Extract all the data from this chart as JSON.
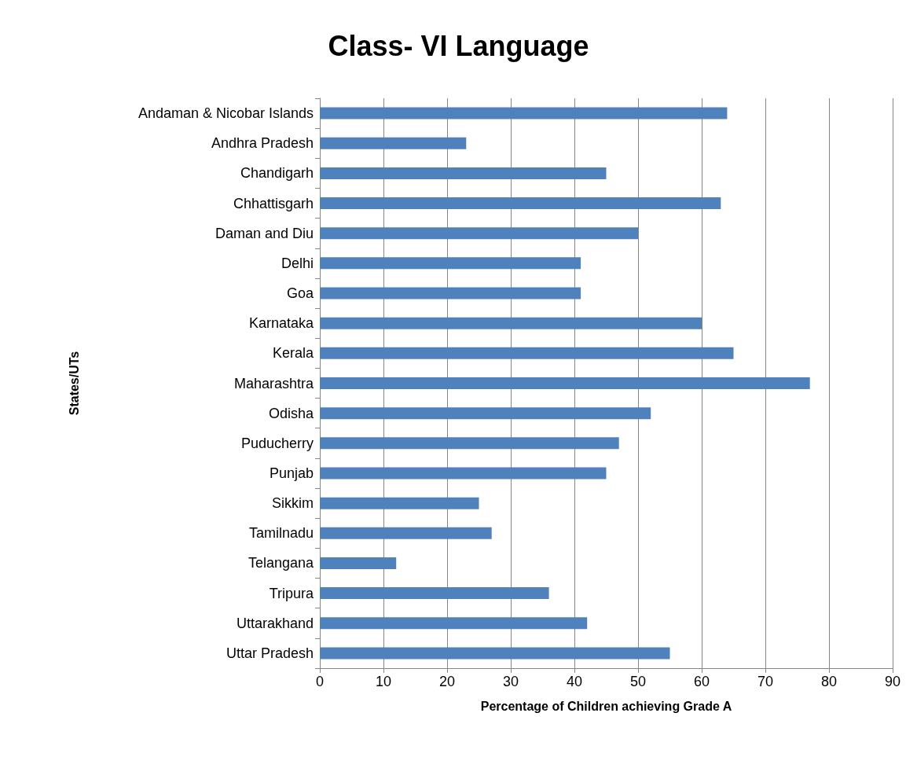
{
  "chart_data": {
    "type": "bar",
    "orientation": "horizontal",
    "title": "Class- VI Language",
    "xlabel": "Percentage of Children achieving Grade A",
    "ylabel": "States/UTs",
    "categories": [
      "Andaman & Nicobar Islands",
      "Andhra Pradesh",
      "Chandigarh",
      "Chhattisgarh",
      "Daman and Diu",
      "Delhi",
      "Goa",
      "Karnataka",
      "Kerala",
      "Maharashtra",
      "Odisha",
      "Puducherry",
      "Punjab",
      "Sikkim",
      "Tamilnadu",
      "Telangana",
      "Tripura",
      "Uttarakhand",
      "Uttar Pradesh"
    ],
    "values": [
      64,
      23,
      45,
      63,
      50,
      41,
      41,
      60,
      65,
      77,
      52,
      47,
      45,
      25,
      27,
      12,
      36,
      42,
      55
    ],
    "color": "#4f81bd",
    "xlim": [
      0,
      90
    ],
    "xticks": [
      0,
      10,
      20,
      30,
      40,
      50,
      60,
      70,
      80,
      90
    ],
    "grid": "x"
  }
}
